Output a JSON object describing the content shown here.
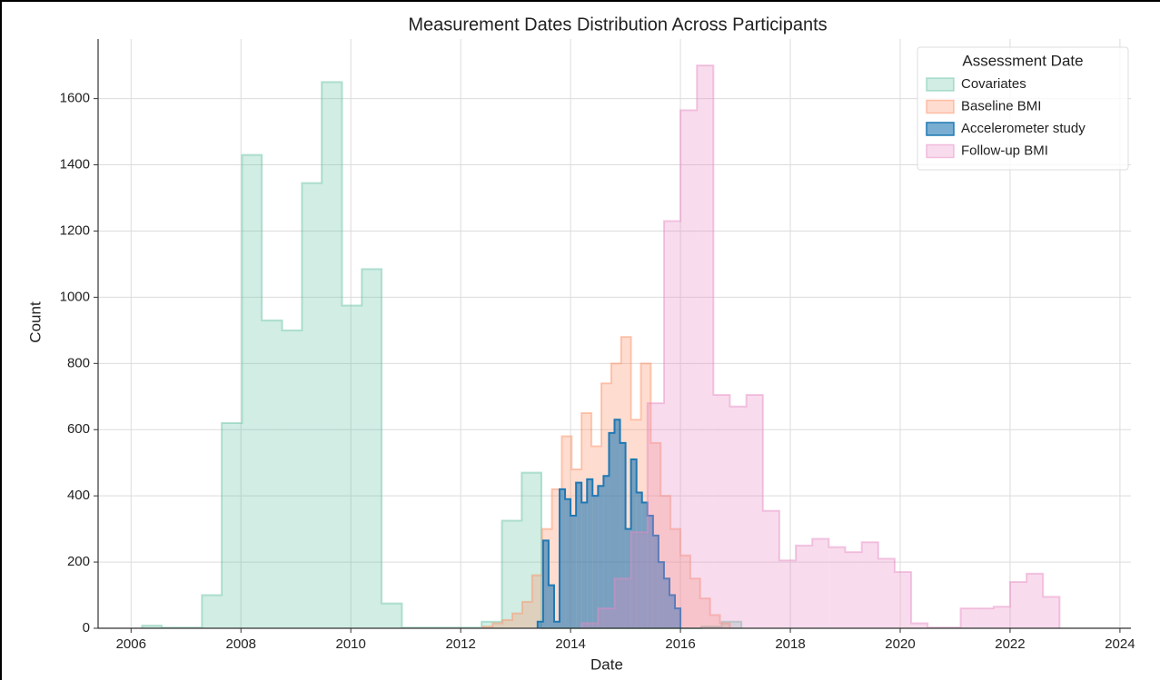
{
  "chart_data": {
    "type": "histogram",
    "title": "Measurement Dates Distribution Across Participants",
    "xlabel": "Date",
    "ylabel": "Count",
    "legend_title": "Assessment Date",
    "legend": "upper right",
    "grid": true,
    "xlim": [
      2005.4,
      2024.2
    ],
    "ylim": [
      0,
      1780
    ],
    "xticks": [
      2006,
      2008,
      2010,
      2012,
      2014,
      2016,
      2018,
      2020,
      2022,
      2024
    ],
    "yticks": [
      0,
      200,
      400,
      600,
      800,
      1000,
      1200,
      1400,
      1600
    ],
    "series": [
      {
        "name": "Covariates",
        "color": "#66c2a5",
        "opacity": 0.3,
        "bins": [
          2006.2,
          2006.56,
          2006.93,
          2007.29,
          2007.65,
          2008.02,
          2008.38,
          2008.75,
          2009.11,
          2009.47,
          2009.84,
          2010.2,
          2010.56,
          2010.93,
          2011.29,
          2011.65,
          2012.02,
          2012.38,
          2012.75,
          2013.11,
          2013.47,
          2013.84,
          2014.2,
          2014.56,
          2014.93,
          2015.29,
          2015.65,
          2016.02,
          2016.38,
          2016.75,
          2017.11
        ],
        "values": [
          8,
          2,
          2,
          100,
          620,
          1430,
          930,
          900,
          1345,
          1650,
          975,
          1085,
          75,
          2,
          2,
          2,
          2,
          20,
          325,
          470,
          0,
          0,
          0,
          0,
          0,
          0,
          0,
          0,
          5,
          20
        ]
      },
      {
        "name": "Baseline BMI",
        "color": "#fc8d62",
        "opacity": 0.3,
        "bins": [
          2012.4,
          2012.58,
          2012.76,
          2012.94,
          2013.12,
          2013.3,
          2013.48,
          2013.66,
          2013.84,
          2014.02,
          2014.2,
          2014.38,
          2014.56,
          2014.74,
          2014.92,
          2015.1,
          2015.28,
          2015.46,
          2015.64,
          2015.82,
          2016.0,
          2016.18,
          2016.36,
          2016.54,
          2016.72,
          2016.9
        ],
        "values": [
          5,
          15,
          25,
          45,
          80,
          160,
          300,
          420,
          580,
          480,
          650,
          550,
          740,
          800,
          880,
          630,
          800,
          560,
          400,
          300,
          220,
          150,
          90,
          40,
          15
        ]
      },
      {
        "name": "Accelerometer study",
        "color": "#1f78b4",
        "opacity": 0.6,
        "bins": [
          2013.4,
          2013.5,
          2013.6,
          2013.7,
          2013.8,
          2013.9,
          2014.0,
          2014.1,
          2014.2,
          2014.3,
          2014.4,
          2014.5,
          2014.6,
          2014.7,
          2014.8,
          2014.9,
          2015.0,
          2015.1,
          2015.2,
          2015.3,
          2015.4,
          2015.5,
          2015.6,
          2015.7,
          2015.8,
          2015.9,
          2016.0
        ],
        "values": [
          20,
          265,
          130,
          20,
          420,
          390,
          340,
          440,
          380,
          450,
          400,
          430,
          460,
          590,
          630,
          560,
          300,
          510,
          410,
          380,
          340,
          280,
          200,
          150,
          100,
          60
        ]
      },
      {
        "name": "Follow-up BMI",
        "color": "#e78ac3",
        "opacity": 0.3,
        "bins": [
          2014.2,
          2014.5,
          2014.8,
          2015.1,
          2015.4,
          2015.7,
          2016.0,
          2016.3,
          2016.6,
          2016.9,
          2017.2,
          2017.5,
          2017.8,
          2018.1,
          2018.4,
          2018.7,
          2019.0,
          2019.3,
          2019.6,
          2019.9,
          2020.2,
          2020.5,
          2020.8,
          2021.1,
          2021.4,
          2021.7,
          2022.0,
          2022.3,
          2022.6,
          2022.9
        ],
        "values": [
          15,
          60,
          150,
          290,
          680,
          1230,
          1565,
          1700,
          705,
          670,
          705,
          355,
          205,
          250,
          270,
          245,
          230,
          260,
          210,
          170,
          15,
          2,
          2,
          60,
          60,
          65,
          140,
          165,
          95
        ]
      }
    ]
  }
}
